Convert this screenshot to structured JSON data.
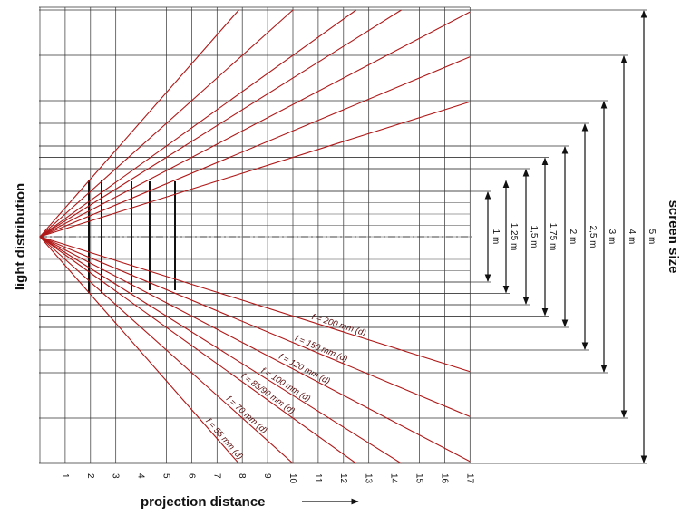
{
  "left_label": "light distribution",
  "right_label": "screen size",
  "bottom_label": "projection distance",
  "distance_ticks": [
    "1",
    "2",
    "3",
    "4",
    "5",
    "6",
    "7",
    "8",
    "9",
    "10",
    "11",
    "12",
    "13",
    "14",
    "15",
    "16",
    "17"
  ],
  "screen_sizes": [
    "1 m",
    "1,25 m",
    "1,5 m",
    "1,75 m",
    "2 m",
    "2,5 m",
    "3 m",
    "4 m",
    "5 m"
  ],
  "lenses": [
    "f = 200 mm (d)",
    "f = 150 mm (d)",
    "f = 120 mm (d)",
    "f = 100 mm (d)",
    "f = 85/90 mm (d)",
    "f = 70 mm (d)",
    "f = 55 mm (d)"
  ]
}
